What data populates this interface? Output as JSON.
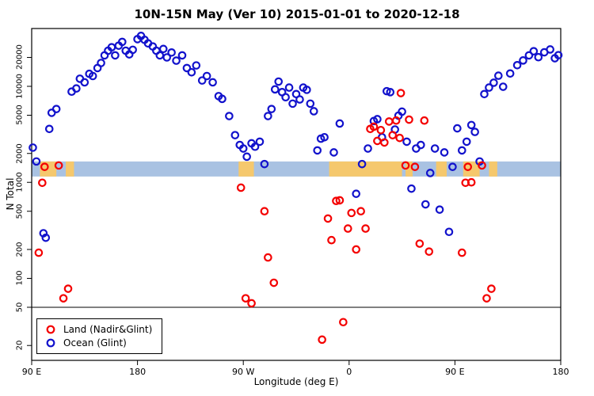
{
  "title": "10N-15N May (Ver 10)   2015-01-01 to 2020-12-18",
  "chart_data": {
    "type": "scatter",
    "title": "10N-15N May (Ver 10)   2015-01-01 to 2020-12-18",
    "xlabel": "Longitude (deg E)",
    "ylabel": "N Total",
    "x_scale": "linear",
    "y_scale": "log",
    "xlim": [
      90,
      540
    ],
    "ylim": [
      14,
      40000
    ],
    "grid": false,
    "x_ticks": [
      {
        "value": 90,
        "label": "90 E"
      },
      {
        "value": 180,
        "label": "180"
      },
      {
        "value": 270,
        "label": "90 W"
      },
      {
        "value": 360,
        "label": "0"
      },
      {
        "value": 450,
        "label": "90 E"
      },
      {
        "value": 540,
        "label": "180"
      }
    ],
    "y_ticks": [
      {
        "value": 20,
        "label": "20"
      },
      {
        "value": 50,
        "label": "50"
      },
      {
        "value": 100,
        "label": "100"
      },
      {
        "value": 200,
        "label": "200"
      },
      {
        "value": 500,
        "label": "500"
      },
      {
        "value": 1000,
        "label": "1000"
      },
      {
        "value": 2000,
        "label": "2000"
      },
      {
        "value": 5000,
        "label": "5000"
      },
      {
        "value": 10000,
        "label": "10000"
      },
      {
        "value": 20000,
        "label": "20000"
      }
    ],
    "hline": 50,
    "latitude_band_strip": {
      "description": "map strip of 10N-15N latitude band: ocean vs land along longitude",
      "n_low": 1150,
      "n_high": 1650,
      "ocean_color": "#a9c2e2",
      "land_color": "#f5c86d",
      "land_segments_lon": [
        [
          97,
          111
        ],
        [
          119,
          126
        ],
        [
          266,
          279
        ],
        [
          343,
          405
        ],
        [
          408,
          414
        ],
        [
          434,
          443
        ],
        [
          457,
          471
        ],
        [
          479,
          486
        ]
      ]
    },
    "legend": {
      "position": "bottom-left",
      "items": [
        "Land (Nadir&Glint)",
        "Ocean (Glint)"
      ]
    },
    "series": [
      {
        "name": "Land (Nadir&Glint)",
        "color": "#f40000",
        "marker": "open-circle",
        "points": [
          [
            96,
            185
          ],
          [
            99,
            990
          ],
          [
            101,
            1450
          ],
          [
            113,
            1500
          ],
          [
            117,
            62
          ],
          [
            121,
            78
          ],
          [
            268,
            880
          ],
          [
            272,
            62
          ],
          [
            277,
            55
          ],
          [
            288,
            500
          ],
          [
            291,
            165
          ],
          [
            296,
            90
          ],
          [
            337,
            23
          ],
          [
            342,
            420
          ],
          [
            345,
            250
          ],
          [
            349,
            640
          ],
          [
            352,
            650
          ],
          [
            355,
            35
          ],
          [
            359,
            330
          ],
          [
            362,
            480
          ],
          [
            366,
            200
          ],
          [
            370,
            500
          ],
          [
            374,
            330
          ],
          [
            378,
            3600
          ],
          [
            381,
            3800
          ],
          [
            384,
            2700
          ],
          [
            387,
            3500
          ],
          [
            390,
            2600
          ],
          [
            394,
            4300
          ],
          [
            397,
            3100
          ],
          [
            400,
            4400
          ],
          [
            403,
            2900
          ],
          [
            404,
            8500
          ],
          [
            408,
            1500
          ],
          [
            411,
            4500
          ],
          [
            416,
            1450
          ],
          [
            420,
            230
          ],
          [
            424,
            4400
          ],
          [
            428,
            190
          ],
          [
            456,
            185
          ],
          [
            459,
            990
          ],
          [
            461,
            1450
          ],
          [
            464,
            1000
          ],
          [
            473,
            1500
          ],
          [
            477,
            62
          ],
          [
            481,
            78
          ]
        ]
      },
      {
        "name": "Ocean (Glint)",
        "color": "#1212cc",
        "marker": "open-circle",
        "points": [
          [
            91,
            2300
          ],
          [
            94,
            1650
          ],
          [
            100,
            295
          ],
          [
            102,
            265
          ],
          [
            105,
            3600
          ],
          [
            107,
            5300
          ],
          [
            111,
            5800
          ],
          [
            124,
            8800
          ],
          [
            128,
            9500
          ],
          [
            131,
            12000
          ],
          [
            135,
            11000
          ],
          [
            139,
            13500
          ],
          [
            142,
            12800
          ],
          [
            146,
            15500
          ],
          [
            149,
            17500
          ],
          [
            152,
            21000
          ],
          [
            155,
            23500
          ],
          [
            158,
            25500
          ],
          [
            161,
            21000
          ],
          [
            164,
            26500
          ],
          [
            167,
            29000
          ],
          [
            170,
            23500
          ],
          [
            173,
            21500
          ],
          [
            176,
            24000
          ],
          [
            180,
            31000
          ],
          [
            183,
            33500
          ],
          [
            186,
            30500
          ],
          [
            189,
            28000
          ],
          [
            193,
            26000
          ],
          [
            196,
            23500
          ],
          [
            199,
            21000
          ],
          [
            202,
            24500
          ],
          [
            205,
            20000
          ],
          [
            209,
            22500
          ],
          [
            213,
            18500
          ],
          [
            218,
            21000
          ],
          [
            222,
            15500
          ],
          [
            226,
            14000
          ],
          [
            230,
            16500
          ],
          [
            235,
            11500
          ],
          [
            239,
            12800
          ],
          [
            244,
            11000
          ],
          [
            249,
            7900
          ],
          [
            252,
            7400
          ],
          [
            258,
            4900
          ],
          [
            263,
            3100
          ],
          [
            267,
            2450
          ],
          [
            270,
            2250
          ],
          [
            273,
            1850
          ],
          [
            277,
            2550
          ],
          [
            280,
            2350
          ],
          [
            284,
            2650
          ],
          [
            288,
            1550
          ],
          [
            291,
            4900
          ],
          [
            294,
            5800
          ],
          [
            297,
            9300
          ],
          [
            300,
            11200
          ],
          [
            303,
            8700
          ],
          [
            306,
            7700
          ],
          [
            309,
            9700
          ],
          [
            312,
            6600
          ],
          [
            315,
            8300
          ],
          [
            318,
            7300
          ],
          [
            321,
            9700
          ],
          [
            324,
            9200
          ],
          [
            327,
            6600
          ],
          [
            330,
            5500
          ],
          [
            333,
            2150
          ],
          [
            336,
            2850
          ],
          [
            339,
            2950
          ],
          [
            347,
            2050
          ],
          [
            352,
            4100
          ],
          [
            366,
            760
          ],
          [
            371,
            1550
          ],
          [
            376,
            2250
          ],
          [
            381,
            4350
          ],
          [
            384,
            4550
          ],
          [
            388,
            2950
          ],
          [
            392,
            8900
          ],
          [
            395,
            8700
          ],
          [
            399,
            3550
          ],
          [
            402,
            4950
          ],
          [
            405,
            5450
          ],
          [
            409,
            2650
          ],
          [
            413,
            860
          ],
          [
            417,
            2250
          ],
          [
            421,
            2450
          ],
          [
            425,
            590
          ],
          [
            429,
            1250
          ],
          [
            433,
            2250
          ],
          [
            437,
            520
          ],
          [
            441,
            2050
          ],
          [
            445,
            305
          ],
          [
            448,
            1450
          ],
          [
            452,
            3650
          ],
          [
            456,
            2150
          ],
          [
            460,
            2650
          ],
          [
            464,
            3950
          ],
          [
            467,
            3350
          ],
          [
            471,
            1650
          ],
          [
            475,
            8300
          ],
          [
            479,
            9700
          ],
          [
            483,
            10900
          ],
          [
            487,
            12900
          ],
          [
            491,
            9900
          ],
          [
            497,
            13600
          ],
          [
            503,
            16600
          ],
          [
            508,
            18600
          ],
          [
            513,
            21000
          ],
          [
            517,
            23200
          ],
          [
            521,
            20100
          ],
          [
            526,
            22600
          ],
          [
            531,
            24200
          ],
          [
            535,
            19600
          ],
          [
            538,
            21100
          ]
        ]
      }
    ]
  }
}
